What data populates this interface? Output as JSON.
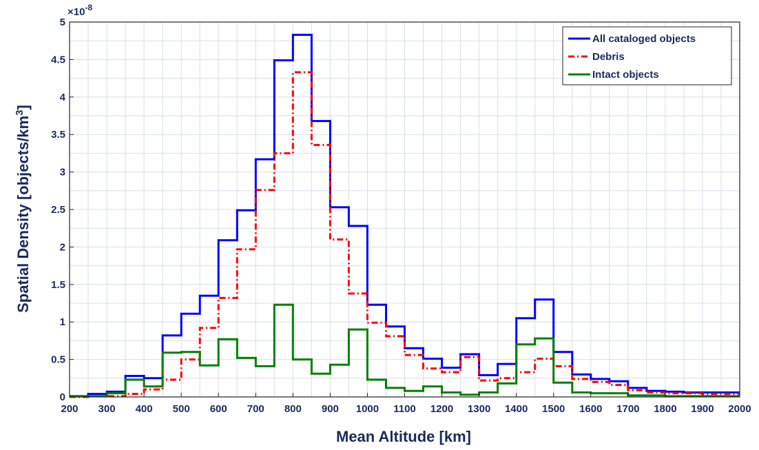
{
  "chart_data": {
    "type": "line",
    "step": true,
    "title": "",
    "xlabel": "Mean Altitude [km]",
    "ylabel_main": "Spatial Density [objects/km",
    "ylabel_sup": "3",
    "ylabel_end": "]",
    "y_multiplier_base": "×10",
    "y_multiplier_exp": "-8",
    "xlim": [
      200,
      2000
    ],
    "ylim": [
      0,
      5
    ],
    "xticks": [
      200,
      300,
      400,
      500,
      600,
      700,
      800,
      900,
      1000,
      1100,
      1200,
      1300,
      1400,
      1500,
      1600,
      1700,
      1800,
      1900,
      2000
    ],
    "yticks": [
      0,
      0.5,
      1,
      1.5,
      2,
      2.5,
      3,
      3.5,
      4,
      4.5,
      5
    ],
    "ytick_labels": [
      "0",
      "0.5",
      "1",
      "1.5",
      "2",
      "2.5",
      "3",
      "3.5",
      "4",
      "4.5",
      "5"
    ],
    "grid": true,
    "legend_position": "top-right",
    "bin_edges": [
      200,
      250,
      300,
      350,
      400,
      450,
      500,
      550,
      600,
      650,
      700,
      750,
      800,
      850,
      900,
      950,
      1000,
      1050,
      1100,
      1150,
      1200,
      1250,
      1300,
      1350,
      1400,
      1450,
      1500,
      1550,
      1600,
      1650,
      1700,
      1750,
      1800,
      1850,
      1900,
      1950,
      2000
    ],
    "series": [
      {
        "name": "All cataloged objects",
        "color": "#0000ff",
        "dash": "solid",
        "values": [
          0.01,
          0.04,
          0.07,
          0.28,
          0.25,
          0.82,
          1.11,
          1.35,
          2.09,
          2.49,
          3.17,
          4.49,
          4.83,
          3.68,
          2.53,
          2.28,
          1.23,
          0.94,
          0.65,
          0.51,
          0.39,
          0.57,
          0.29,
          0.44,
          1.05,
          1.3,
          0.6,
          0.3,
          0.24,
          0.21,
          0.12,
          0.08,
          0.07,
          0.06,
          0.06,
          0.06
        ]
      },
      {
        "name": "Debris",
        "color": "#ff0000",
        "dash": "dashdot",
        "values": [
          0.0,
          0.01,
          0.01,
          0.04,
          0.1,
          0.23,
          0.5,
          0.92,
          1.32,
          1.97,
          2.76,
          3.25,
          4.33,
          3.36,
          2.1,
          1.38,
          0.99,
          0.81,
          0.56,
          0.38,
          0.33,
          0.53,
          0.22,
          0.25,
          0.33,
          0.51,
          0.41,
          0.24,
          0.2,
          0.16,
          0.09,
          0.06,
          0.05,
          0.05,
          0.04,
          0.04
        ]
      },
      {
        "name": "Intact objects",
        "color": "#008000",
        "dash": "solid",
        "values": [
          0.01,
          0.01,
          0.05,
          0.23,
          0.14,
          0.59,
          0.6,
          0.42,
          0.77,
          0.52,
          0.41,
          1.23,
          0.5,
          0.31,
          0.43,
          0.9,
          0.23,
          0.12,
          0.08,
          0.14,
          0.06,
          0.03,
          0.06,
          0.18,
          0.7,
          0.78,
          0.19,
          0.06,
          0.05,
          0.05,
          0.02,
          0.02,
          0.01,
          0.01,
          0.01,
          0.01
        ]
      }
    ]
  }
}
